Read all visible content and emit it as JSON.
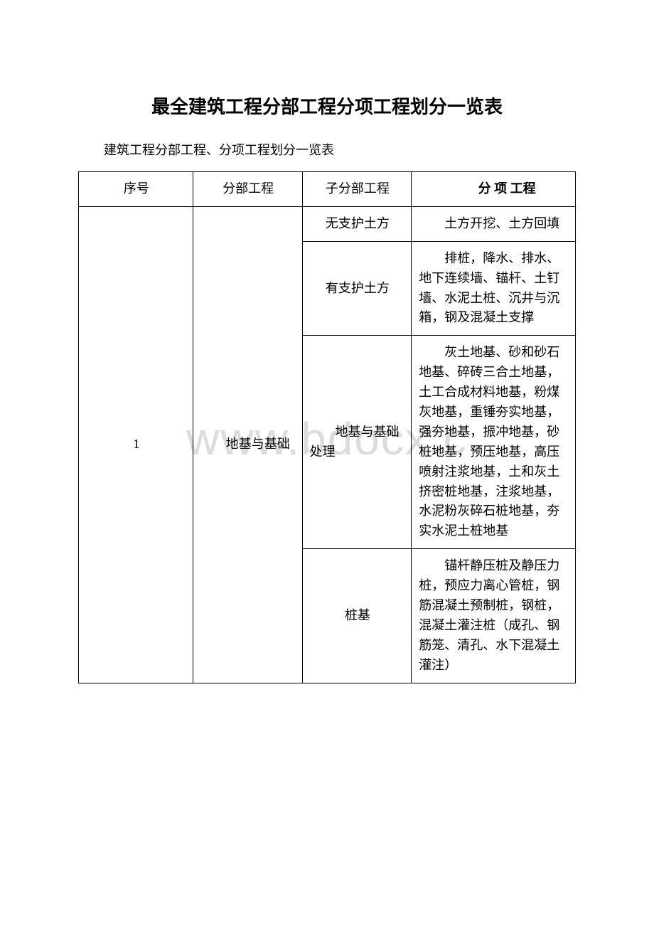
{
  "document": {
    "title": "最全建筑工程分部工程分项工程划分一览表",
    "subtitle": "建筑工程分部工程、分项工程划分一览表",
    "watermark": "www.bdocx.c",
    "colors": {
      "background": "#ffffff",
      "text": "#000000",
      "border": "#000000",
      "watermark": "#dcdcdc"
    },
    "typography": {
      "title_fontsize": 26,
      "subtitle_fontsize": 18,
      "cell_fontsize": 18,
      "watermark_fontsize": 64
    },
    "table": {
      "columns": [
        {
          "key": "seq",
          "label": "序号",
          "width_pct": 23,
          "align": "center"
        },
        {
          "key": "division",
          "label": "分部工程",
          "width_pct": 22,
          "align": "left"
        },
        {
          "key": "subdivision",
          "label": "子分部工程",
          "width_pct": 22,
          "align": "left"
        },
        {
          "key": "item",
          "label": "分 项 工程",
          "width_pct": 33,
          "align": "left"
        }
      ],
      "rows": [
        {
          "seq": "1",
          "division": "地基与基础",
          "subdivision": "无支护土方",
          "item": "土方开挖、土方回填"
        },
        {
          "subdivision": "有支护土方",
          "item": "排桩，降水、排水、地下连续墙、锚杆、土钉墙、水泥土桩、沉井与沉箱，钢及混凝土支撑"
        },
        {
          "subdivision": "地基与基础处理",
          "item": "灰土地基、砂和砂石地基、碎砖三合土地基，土工合成材料地基，粉煤灰地基，重锤夯实地基，强夯地基，振冲地基，砂桩地基，预压地基，高压喷射注浆地基，土和灰土挤密桩地基，注浆地基，水泥粉灰碎石桩地基，夯实水泥土桩地基"
        },
        {
          "subdivision": "桩基",
          "item": "锚杆静压桩及静压力桩，预应力离心管桩，钢筋混凝土预制桩，钢桩，混凝土灌注桩（成孔、钢筋笼、清孔、水下混凝土灌注）"
        }
      ]
    }
  }
}
